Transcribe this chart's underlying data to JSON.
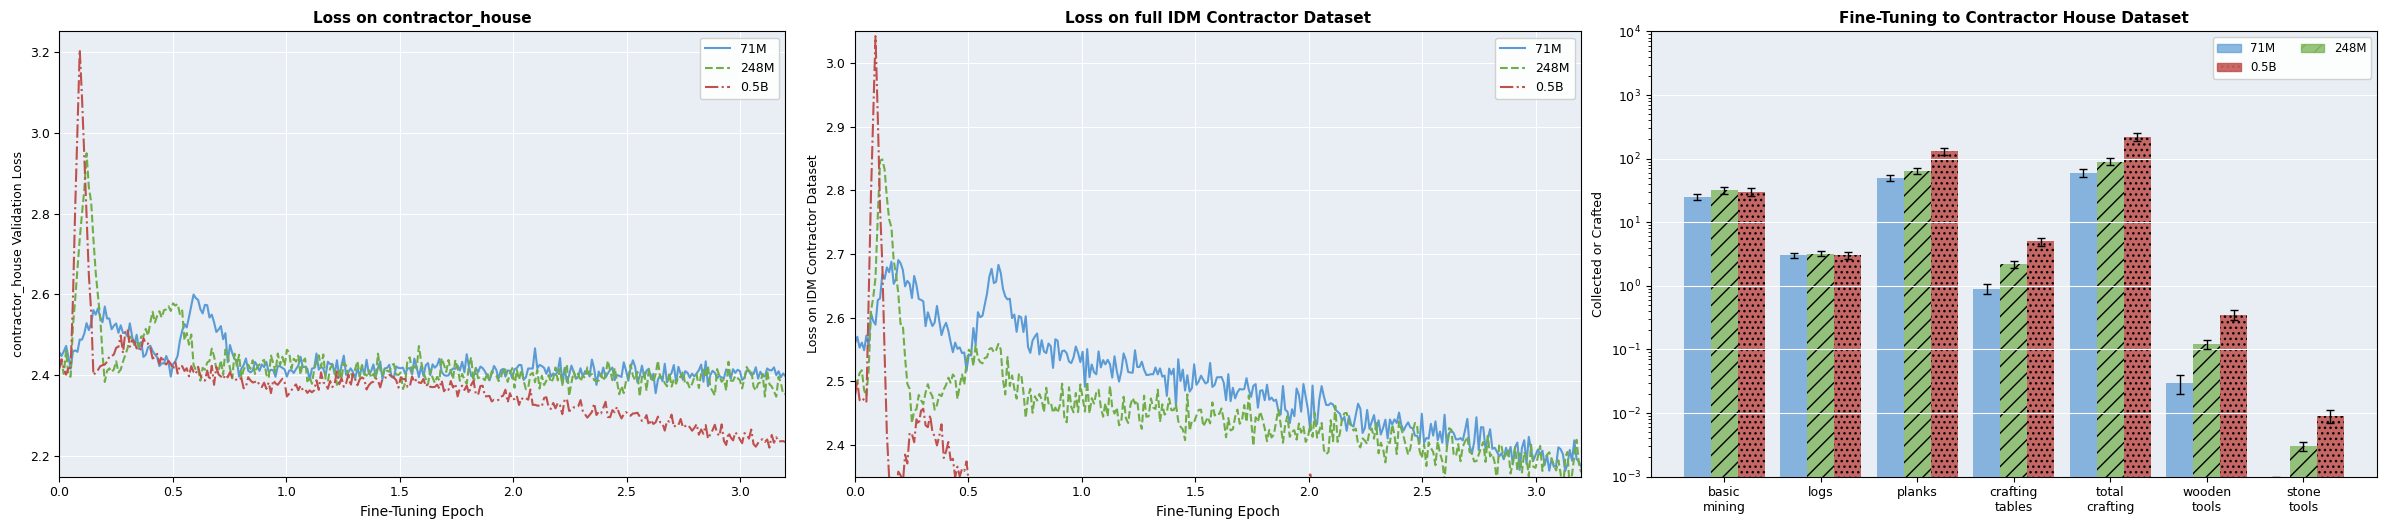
{
  "title1": "Loss on contractor_house",
  "title2": "Loss on full IDM Contractor Dataset",
  "title3": "Fine-Tuning to Contractor House Dataset",
  "xlabel1": "Fine-Tuning Epoch",
  "xlabel2": "Fine-Tuning Epoch",
  "ylabel1": "contractor_house Validation Loss",
  "ylabel2": "Loss on IDM Contractor Dataset",
  "ylabel3": "Collected or Crafted",
  "xlim": [
    0,
    3.2
  ],
  "ylim1": [
    2.15,
    3.25
  ],
  "ylim2": [
    2.35,
    3.05
  ],
  "color_71M": "#5b9bd5",
  "color_248M": "#70ad47",
  "color_05B": "#c0504d",
  "bg_color": "#e8eef4",
  "legend_labels": [
    "71M",
    "248M",
    "0.5B"
  ],
  "bar_categories": [
    "basic\nmining",
    "logs",
    "planks",
    "crafting\ntables",
    "total\ncrafting",
    "wooden\ntools",
    "stone\ntools"
  ],
  "bar_71M": [
    25.0,
    3.0,
    50.0,
    0.9,
    60.0,
    0.03,
    0.0008
  ],
  "bar_248M": [
    32.0,
    3.2,
    65.0,
    2.2,
    90.0,
    0.12,
    0.003
  ],
  "bar_05B": [
    30.0,
    3.0,
    130.0,
    5.0,
    220.0,
    0.35,
    0.009
  ],
  "bar_71M_err": [
    3.0,
    0.3,
    5.0,
    0.15,
    8.0,
    0.01,
    0.0002
  ],
  "bar_248M_err": [
    4.0,
    0.3,
    7.0,
    0.3,
    12.0,
    0.02,
    0.0005
  ],
  "bar_05B_err": [
    4.0,
    0.4,
    15.0,
    0.7,
    30.0,
    0.06,
    0.002
  ]
}
